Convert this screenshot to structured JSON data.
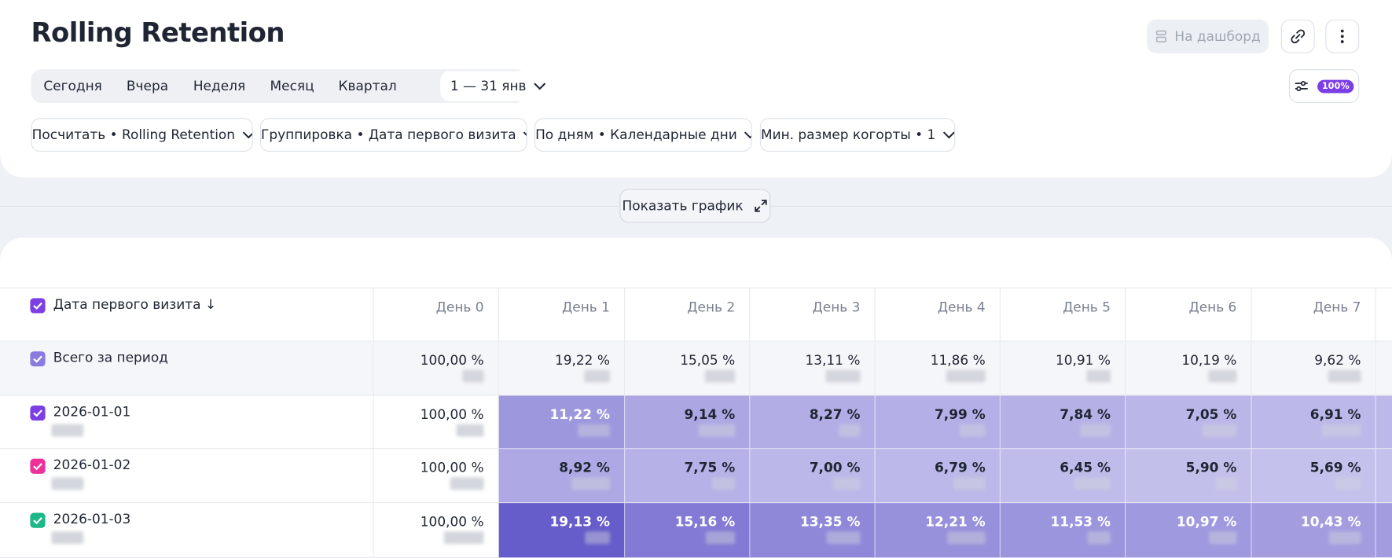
{
  "header": {
    "title": "Rolling Retention",
    "dashboard_button": "На дашборд",
    "settings_badge": "100%"
  },
  "periods": {
    "items": [
      "Сегодня",
      "Вчера",
      "Неделя",
      "Месяц",
      "Квартал"
    ],
    "date_range": "1 — 31 янв"
  },
  "filters": [
    "Посчитать • Rolling Retention",
    "Группировка • Дата первого визита",
    "По дням • Календарные дни",
    "Мин. размер когорты • 1"
  ],
  "show_chart": "Показать график",
  "table": {
    "header_color": "#7b3fe4",
    "columns": [
      "Дата первого визита ↓",
      "День 0",
      "День 1",
      "День 2",
      "День 3",
      "День 4",
      "День 5",
      "День 6",
      "День 7"
    ],
    "rows": [
      {
        "label": "Всего за период",
        "color": "#8b7be0",
        "cells": [
          "100,00 %",
          "19,22 %",
          "15,05 %",
          "13,11 %",
          "11,86 %",
          "10,91 %",
          "10,19 %",
          "9,62 %"
        ]
      },
      {
        "label": "2026-01-01",
        "color": "#7b3fe4",
        "cells": [
          "100,00 %",
          "11,22 %",
          "9,14 %",
          "8,27 %",
          "7,99 %",
          "7,84 %",
          "7,05 %",
          "6,91 %"
        ]
      },
      {
        "label": "2026-01-02",
        "color": "#f0309a",
        "cells": [
          "100,00 %",
          "8,92 %",
          "7,75 %",
          "7,00 %",
          "6,79 %",
          "6,45 %",
          "5,90 %",
          "5,69 %"
        ]
      },
      {
        "label": "2026-01-03",
        "color": "#1db889",
        "cells": [
          "100,00 %",
          "19,13 %",
          "15,16 %",
          "13,35 %",
          "12,21 %",
          "11,53 %",
          "10,97 %",
          "10,43 %"
        ]
      }
    ]
  }
}
